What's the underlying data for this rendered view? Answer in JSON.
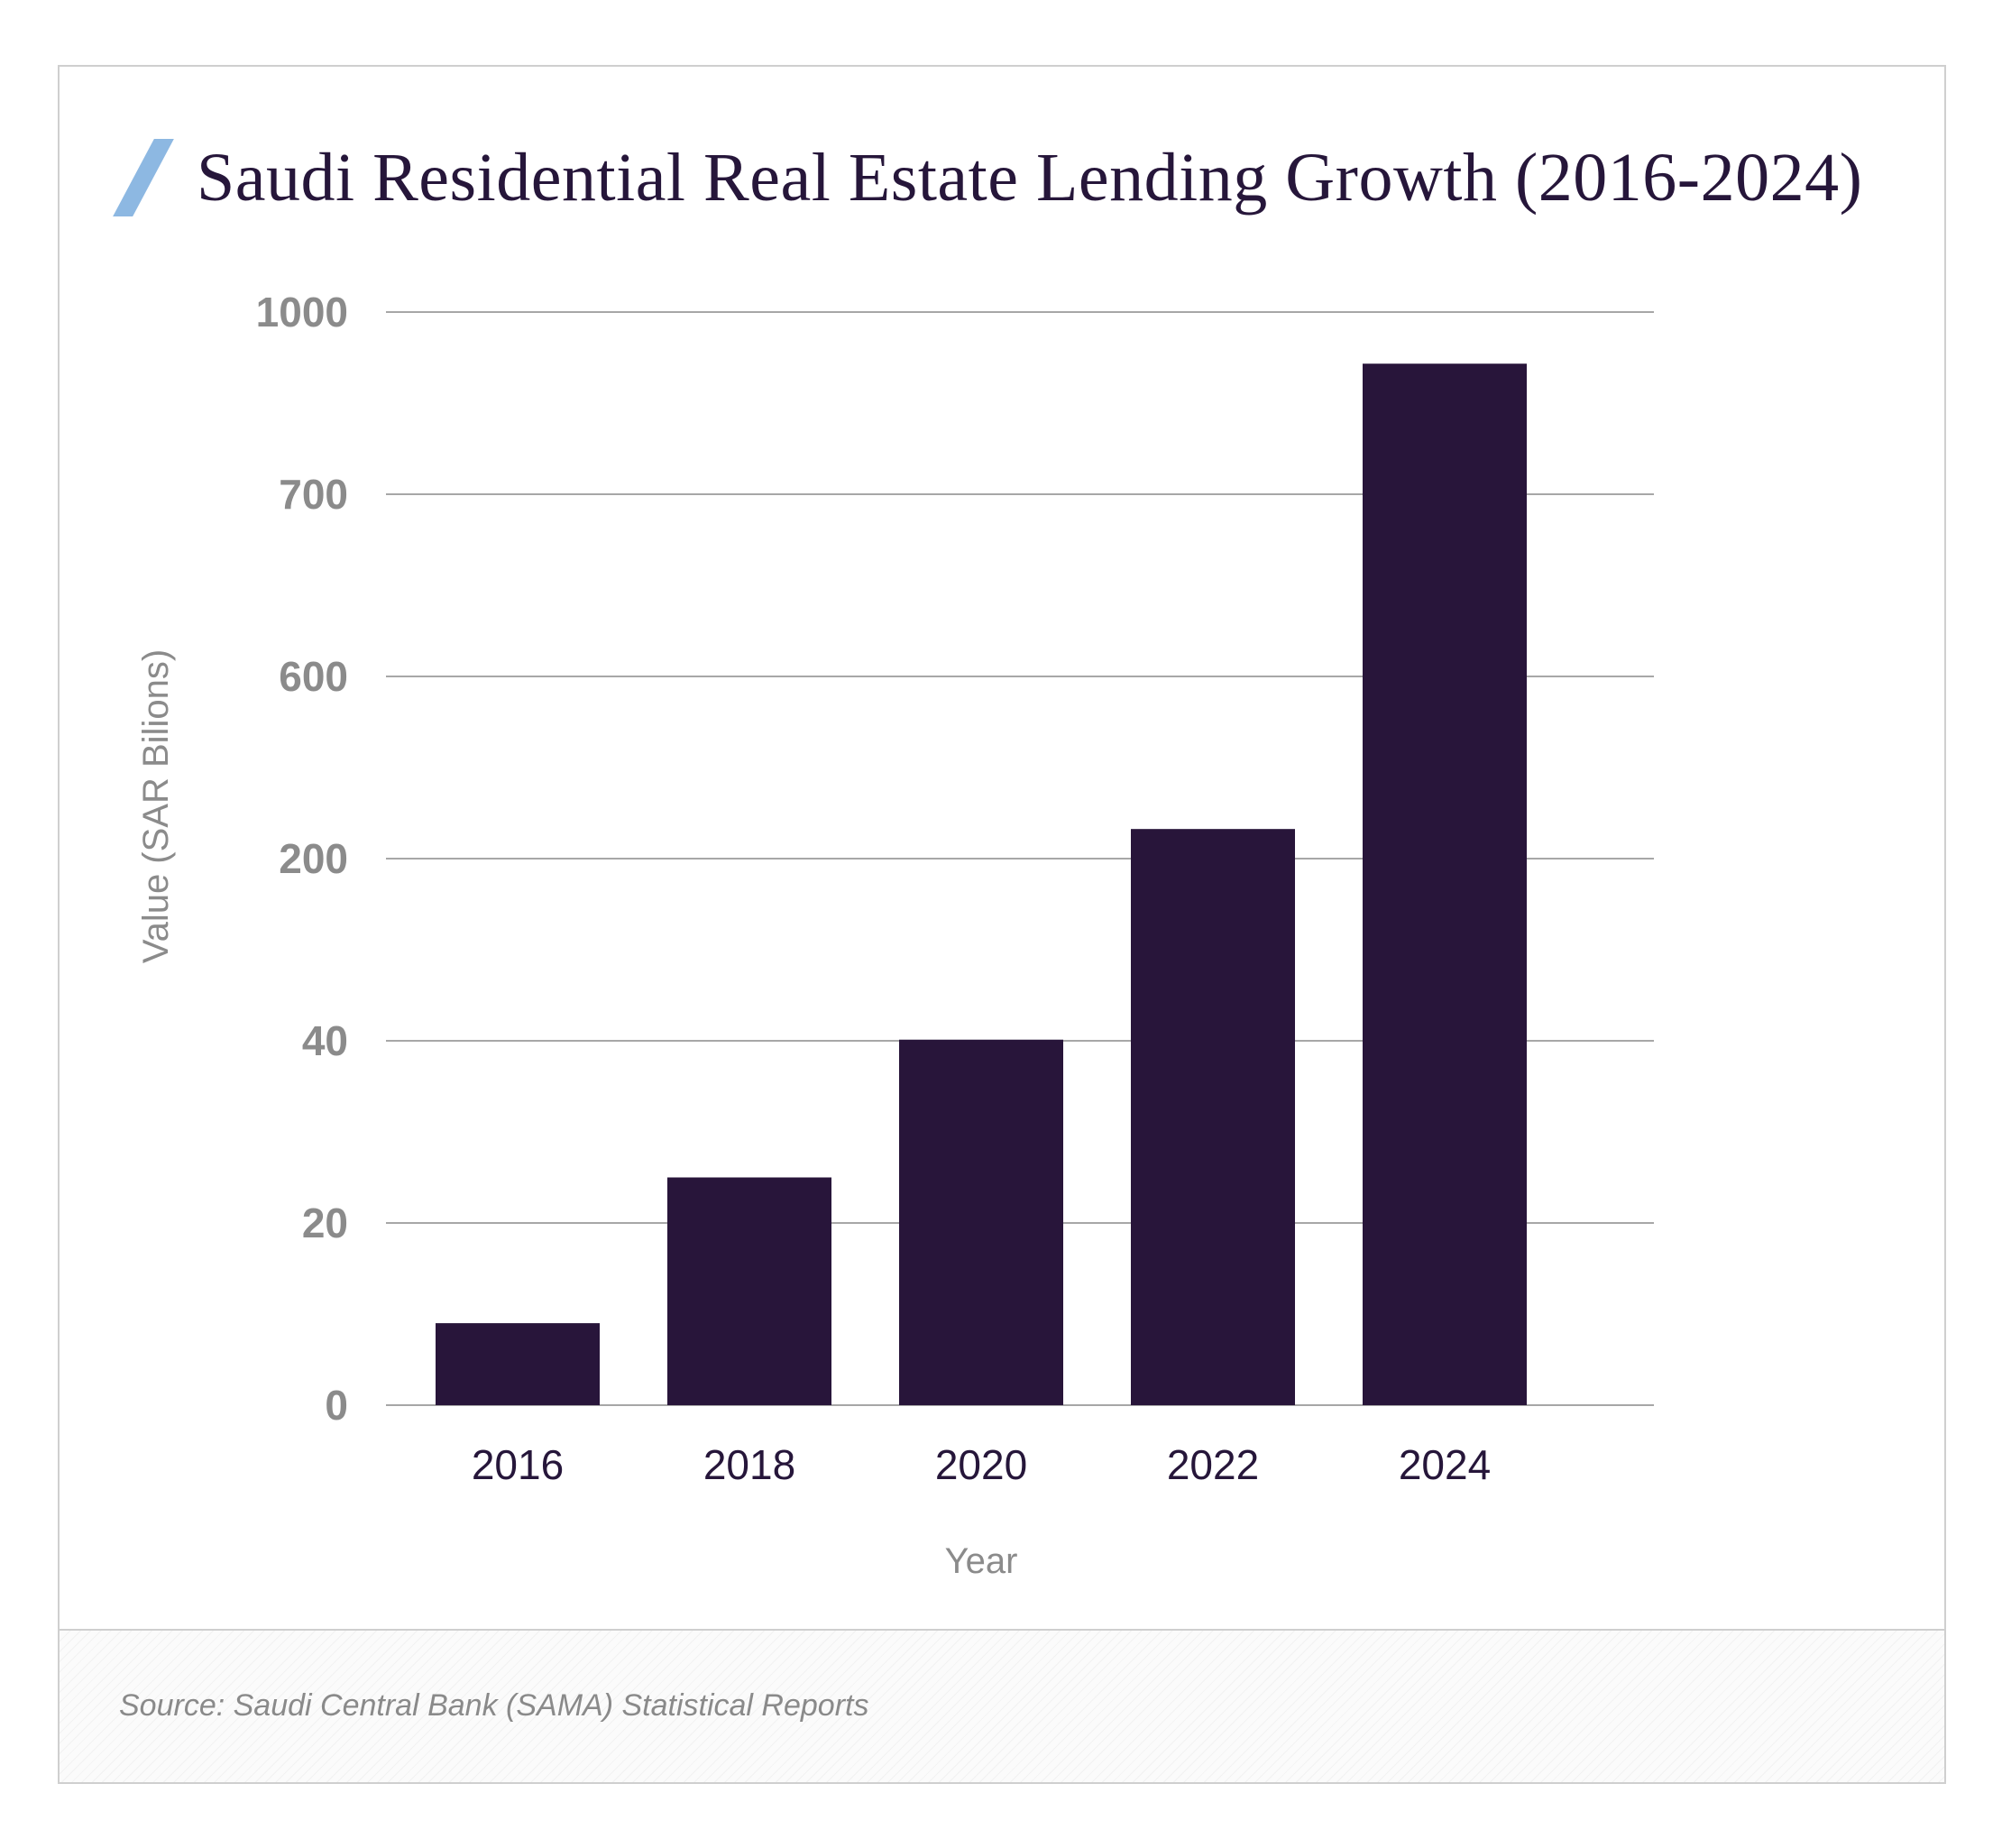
{
  "title": "Saudi Residential Real Estate Lending Growth (2016-2024)",
  "source": "Source: Saudi Central Bank (SAMA) Statistical Reports",
  "colors": {
    "bar": "#28153a",
    "accent_slash": "#8db8e2",
    "grid": "#8a8a8a",
    "tick_text": "#8b8b8b"
  },
  "chart_data": {
    "type": "bar",
    "title": "Saudi Residential Real Estate Lending Growth (2016-2024)",
    "xlabel": "Year",
    "ylabel": "Value (SAR Bilions)",
    "categories": [
      "2016",
      "2018",
      "2020",
      "2022",
      "2024"
    ],
    "yticks": [
      "0",
      "20",
      "40",
      "200",
      "600",
      "700",
      "1000"
    ],
    "values": [
      9,
      25,
      41,
      265,
      915
    ],
    "ylim": [
      0,
      1000
    ],
    "grid": true,
    "legend": "none"
  }
}
